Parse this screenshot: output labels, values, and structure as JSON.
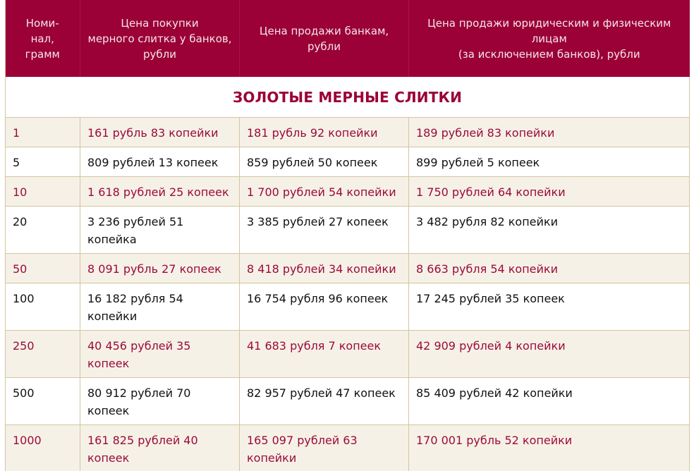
{
  "table": {
    "headers": [
      "Номи-\nнал,\nграмм",
      "Цена покупки\nмерного слитка у банков,\nрубли",
      "Цена продажи банкам,\nрубли",
      "Цена продажи юридическим и физическим\nлицам\n(за исключением банков), рубли"
    ],
    "section_title": "ЗОЛОТЫЕ МЕРНЫЕ СЛИТКИ",
    "rows": [
      {
        "nominal": "1",
        "buy": "161 рубль 83 копейки",
        "sell_banks": "181 рубль 92 копейки",
        "sell_others": "189 рублей 83 копейки"
      },
      {
        "nominal": "5",
        "buy": "809 рублей 13 копеек",
        "sell_banks": "859 рублей 50 копеек",
        "sell_others": "899 рублей 5 копеек"
      },
      {
        "nominal": "10",
        "buy": "1 618 рублей 25 копеек",
        "sell_banks": "1 700 рублей 54 копейки",
        "sell_others": "1 750 рублей 64 копейки"
      },
      {
        "nominal": "20",
        "buy": "3 236 рублей 51 копейка",
        "sell_banks": "3 385 рублей 27 копеек",
        "sell_others": "3 482 рубля 82 копейки"
      },
      {
        "nominal": "50",
        "buy": "8 091 рубль 27 копеек",
        "sell_banks": "8 418 рублей 34 копейки",
        "sell_others": "8 663 рубля 54 копейки"
      },
      {
        "nominal": "100",
        "buy": "16 182 рубля 54 копейки",
        "sell_banks": "16 754 рубля 96 копеек",
        "sell_others": "17 245 рублей 35 копеек"
      },
      {
        "nominal": "250",
        "buy": "40 456 рублей 35 копеек",
        "sell_banks": "41 683 рубля 7 копеек",
        "sell_others": "42 909 рублей 4 копейки"
      },
      {
        "nominal": "500",
        "buy": "80 912 рублей 70 копеек",
        "sell_banks": "82 957 рублей 47 копеек",
        "sell_others": "85 409 рублей 42 копейки"
      },
      {
        "nominal": "1000",
        "buy": "161 825 рублей 40 копеек",
        "sell_banks": "165 097 рублей 63 копейки",
        "sell_others": "170 001 рубль 52 копейки"
      }
    ]
  },
  "colors": {
    "header_bg": "#9b0036",
    "header_text": "#f4e6ea",
    "accent_text": "#9b0a3c",
    "odd_row_bg": "#f6f1e7",
    "border": "#d4c5a0"
  }
}
